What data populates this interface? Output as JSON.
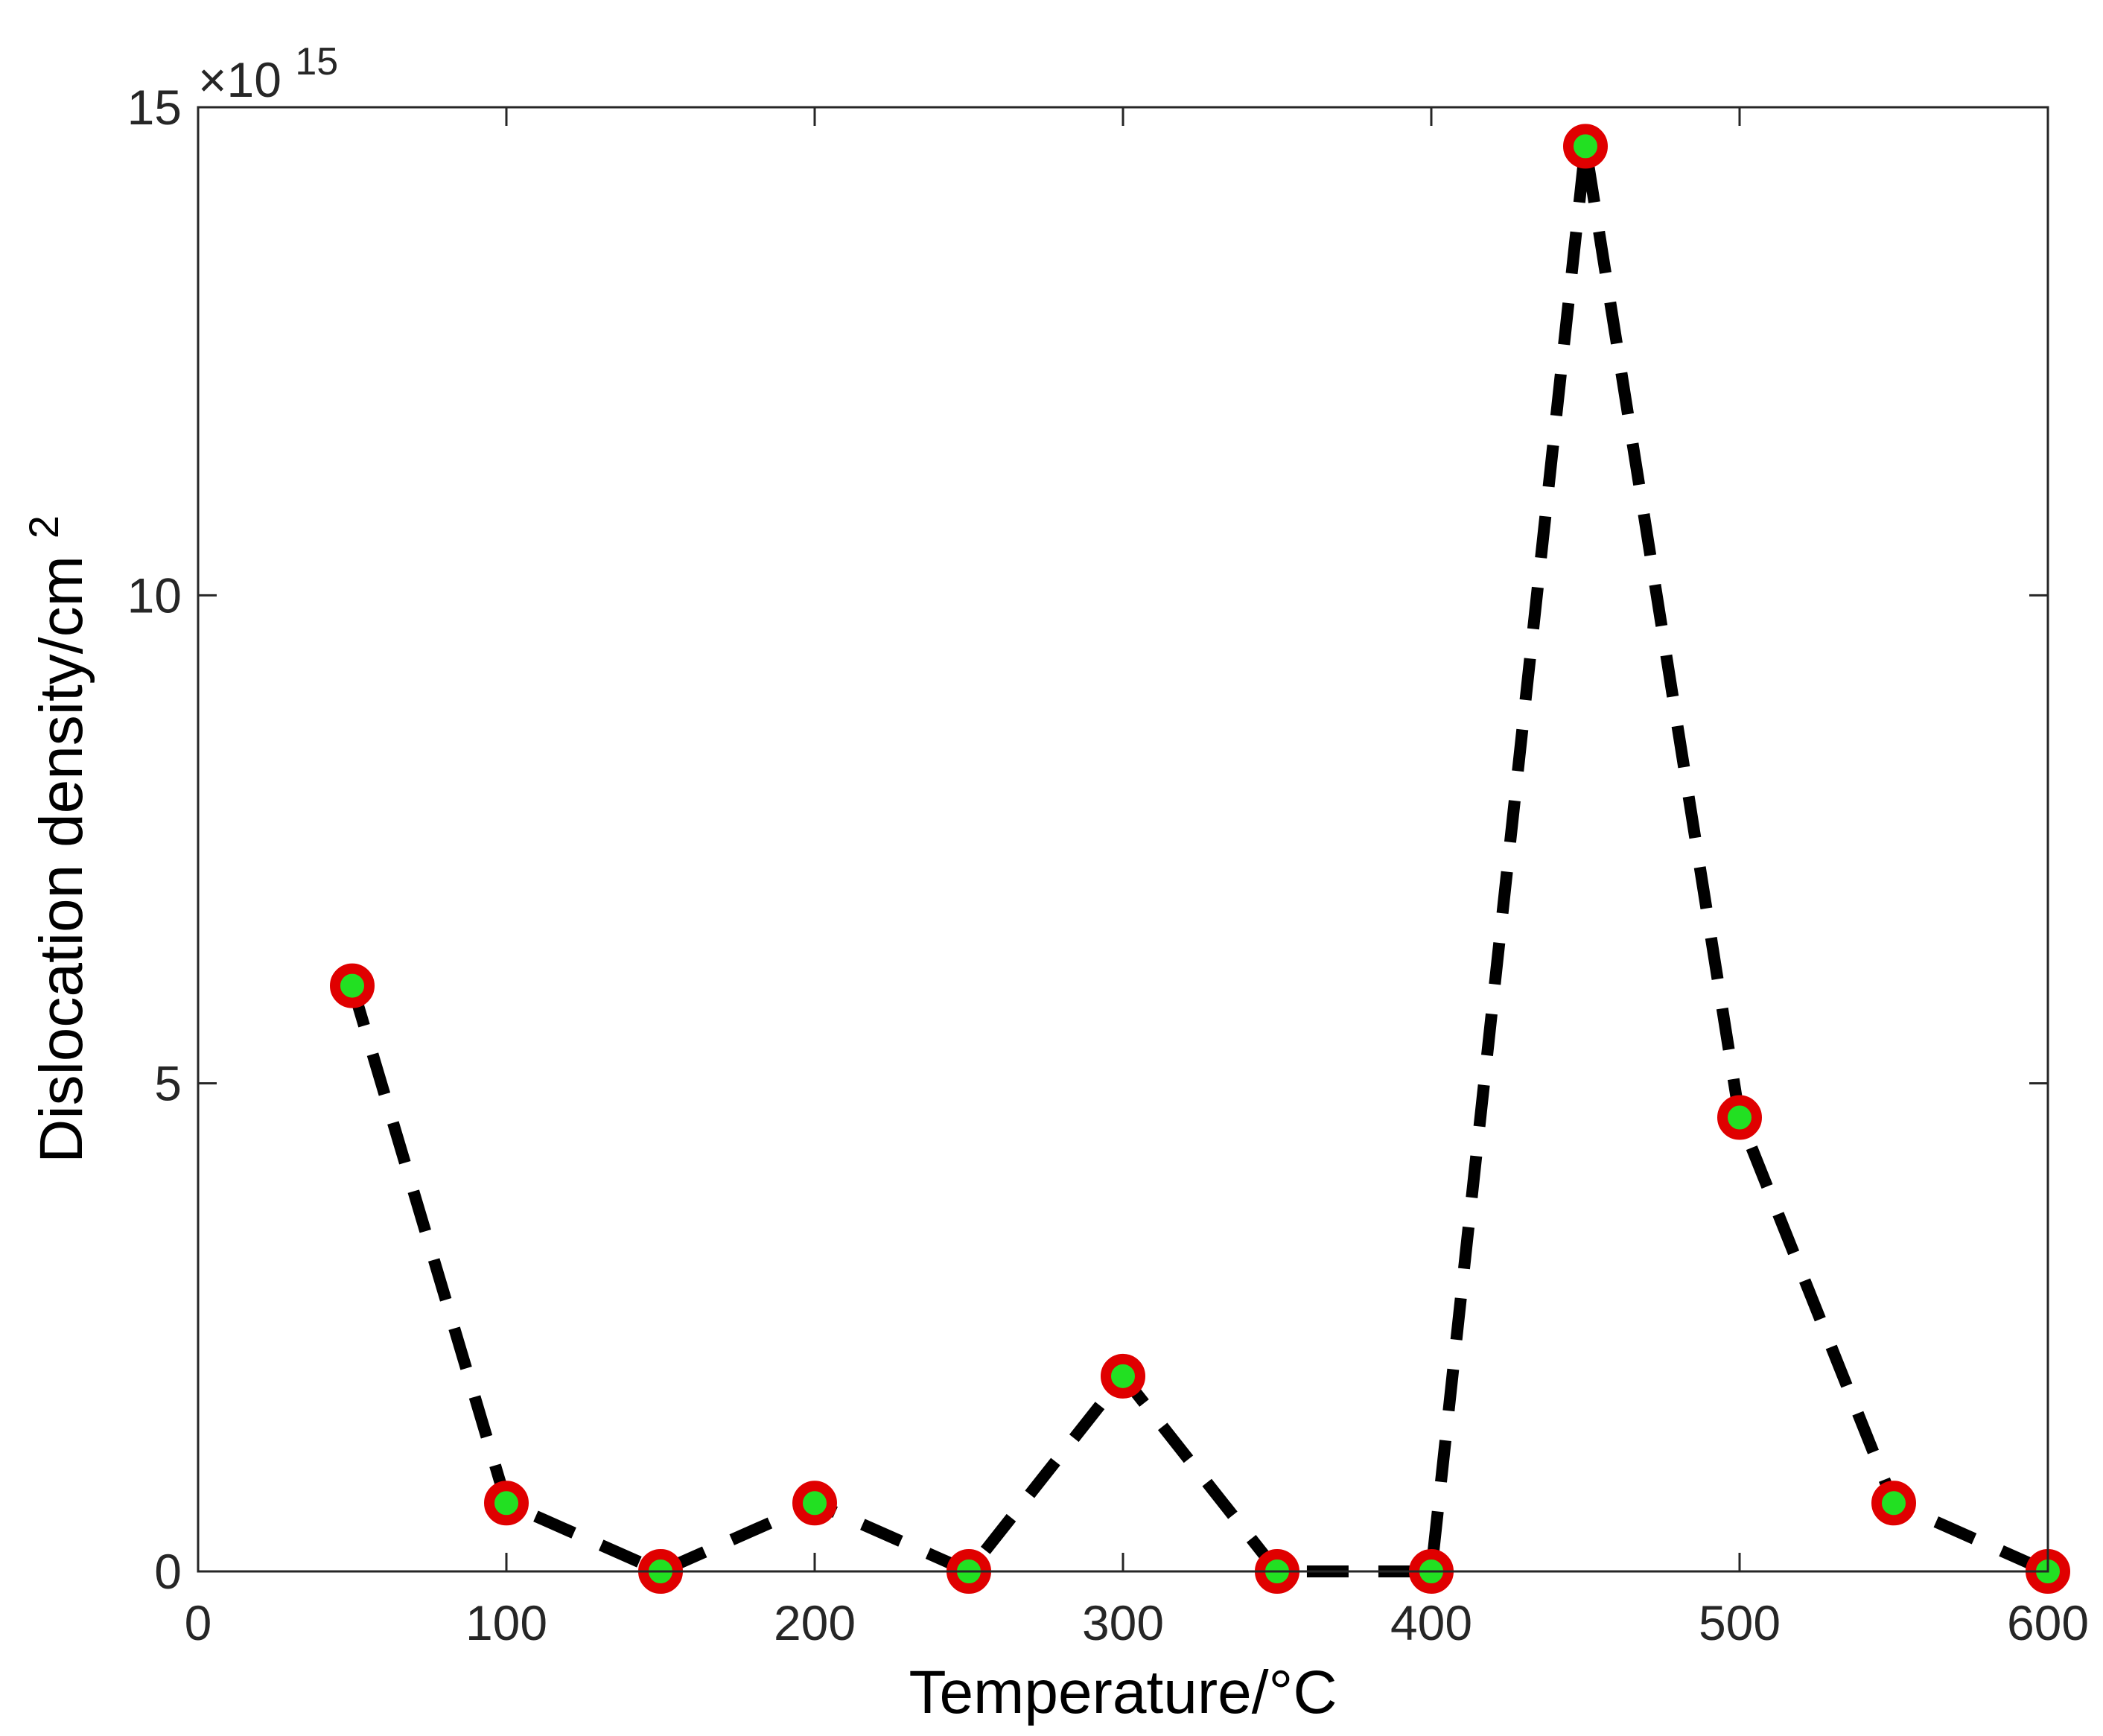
{
  "chart_data": {
    "type": "line",
    "xlabel": "Temperature/°C",
    "ylabel": "Dislocation density/cm",
    "ylabel_superscript": "2",
    "y_multiplier_base": "×10",
    "y_multiplier_exponent": "15",
    "xlim": [
      0,
      600
    ],
    "ylim": [
      0,
      15
    ],
    "x_ticks": [
      "0",
      "100",
      "200",
      "300",
      "400",
      "500",
      "600"
    ],
    "y_ticks": [
      "0",
      "5",
      "10",
      "15"
    ],
    "grid": false,
    "line_style": "dashed",
    "line_color": "#000000",
    "marker_edge_color": "#e00000",
    "marker_face_color": "#22e022",
    "series": [
      {
        "x": [
          50,
          100,
          150,
          200,
          250,
          300,
          350,
          400,
          450,
          500,
          550,
          600
        ],
        "values": [
          6.0,
          0.7,
          0.0,
          0.7,
          0.0,
          2.0,
          0.0,
          0.0,
          14.6,
          4.65,
          0.7,
          0.0
        ]
      }
    ]
  }
}
